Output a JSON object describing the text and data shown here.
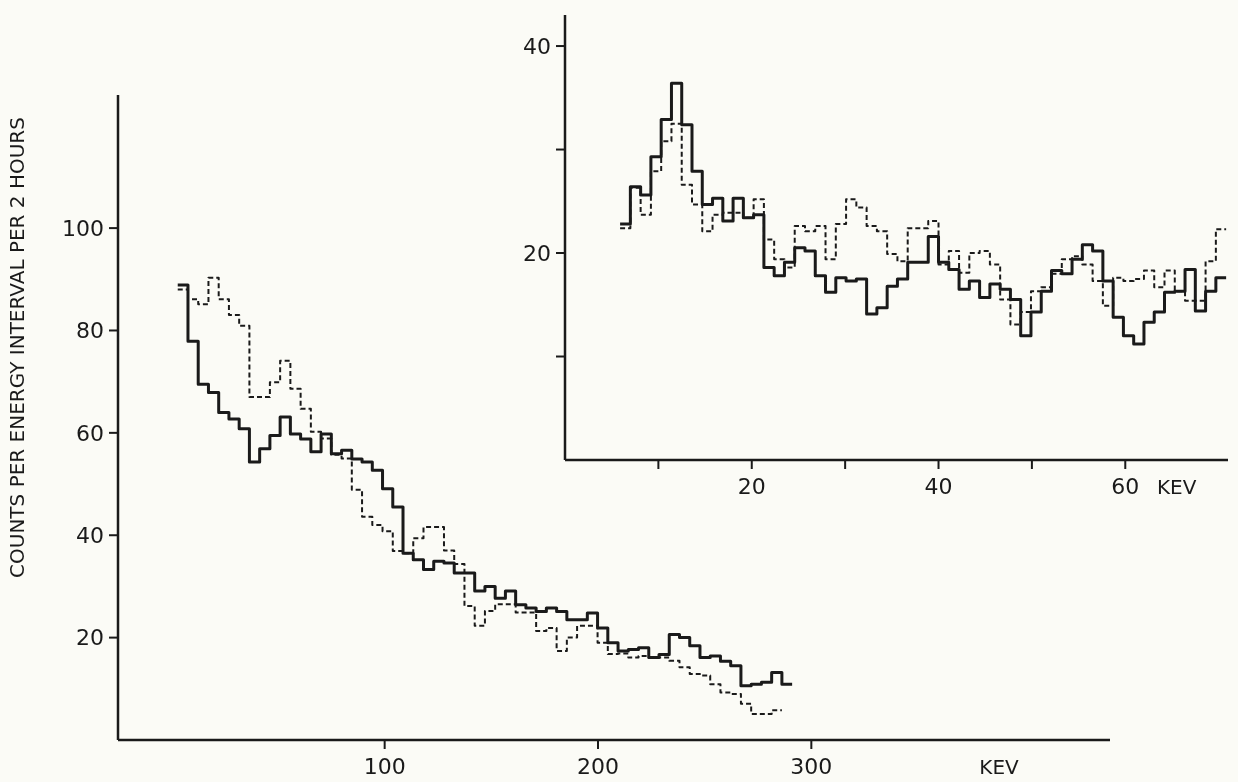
{
  "chart_data": [
    {
      "type": "step",
      "ylabel": "COUNTS PER ENERGY INTERVAL PER 2 HOURS",
      "xlabel": "KEV",
      "x": [
        3,
        7.8,
        12.6,
        17.4,
        22.2,
        27,
        31.8,
        36.6,
        41.4,
        46.2,
        51,
        55.8,
        60.6,
        65.4,
        70.2,
        75,
        79.8,
        84.6,
        89.4,
        94.2,
        99,
        103.8,
        108.6,
        113.4,
        118.2,
        123,
        127.8,
        132.6,
        137.4,
        142.2,
        147,
        151.8,
        156.6,
        161.4,
        166.2,
        171,
        175.8,
        180.6,
        185.4,
        190.2,
        195,
        199.8,
        204.6,
        209.4,
        214.2,
        219,
        223.8,
        228.6,
        233.4,
        238.2,
        243,
        247.8,
        252.6,
        257.4,
        262.2,
        267,
        271.8,
        276.6,
        281.4,
        286.2,
        291
      ],
      "series": [
        {
          "color": "#1a1a1a",
          "line_style": "solid",
          "values": [
            88.9,
            77.9,
            69.5,
            67.9,
            64.0,
            62.7,
            60.8,
            54.3,
            56.9,
            59.5,
            63.1,
            59.8,
            58.8,
            56.3,
            59.8,
            55.9,
            56.6,
            54.9,
            54.3,
            52.7,
            49.1,
            45.5,
            36.5,
            35.2,
            33.3,
            34.9,
            34.6,
            32.6,
            32.6,
            29.1,
            30.0,
            27.7,
            29.1,
            26.4,
            25.8,
            25.1,
            25.8,
            25.1,
            23.5,
            23.5,
            24.8,
            21.9,
            19.0,
            17.4,
            17.7,
            18.0,
            16.1,
            16.7,
            20.6,
            20.0,
            18.4,
            16.1,
            16.4,
            15.4,
            14.5,
            10.6,
            10.9,
            11.3,
            13.2,
            10.9,
            10.9
          ]
        },
        {
          "color": "#1a1a1a",
          "line_style": "dashed",
          "values": [
            88.0,
            86.1,
            85.1,
            90.3,
            86.1,
            83.0,
            80.9,
            67.0,
            67.0,
            69.9,
            74.1,
            68.6,
            64.7,
            60.2,
            58.9,
            55.7,
            55.0,
            48.9,
            43.6,
            42.0,
            40.8,
            36.9,
            36.5,
            39.4,
            41.6,
            41.6,
            37.0,
            34.4,
            26.2,
            22.3,
            25.2,
            26.5,
            26.5,
            24.9,
            24.9,
            21.3,
            21.9,
            17.4,
            20.0,
            22.3,
            22.3,
            19.0,
            16.8,
            16.9,
            16.1,
            16.4,
            16.1,
            16.1,
            15.5,
            14.2,
            12.9,
            12.6,
            10.9,
            9.3,
            9.0,
            7.1,
            5.1,
            5.1,
            5.8,
            5.8,
            null
          ]
        }
      ],
      "xlim": [
        -25,
        440
      ],
      "ylim": [
        0,
        126
      ],
      "xticks": [
        100,
        200,
        300
      ],
      "yticks": [
        20,
        40,
        60,
        80,
        100
      ]
    },
    {
      "type": "step",
      "xlabel": "KEV",
      "x": [
        5.9,
        7,
        8.1,
        9.2,
        10.3,
        11.4,
        12.5,
        13.6,
        14.7,
        15.8,
        16.9,
        18,
        19.1,
        20.2,
        21.3,
        22.4,
        23.5,
        24.6,
        25.7,
        26.8,
        27.9,
        29,
        30.1,
        31.2,
        32.3,
        33.4,
        34.5,
        35.6,
        36.7,
        37.8,
        38.9,
        40,
        41.1,
        42.2,
        43.3,
        44.4,
        45.5,
        46.6,
        47.7,
        48.8,
        49.9,
        51,
        52.1,
        53.2,
        54.3,
        55.4,
        56.5,
        57.6,
        58.7,
        59.8,
        60.9,
        62,
        63.1,
        64.2,
        65.3,
        66.4,
        67.5,
        68.6,
        69.7,
        70.8
      ],
      "series": [
        {
          "color": "#1a1a1a",
          "line_style": "solid",
          "values": [
            22.8,
            26.4,
            25.6,
            29.3,
            32.9,
            36.4,
            32.4,
            27.9,
            24.7,
            25.3,
            23.1,
            25.3,
            23.4,
            23.7,
            18.6,
            17.8,
            19.1,
            20.5,
            20.2,
            17.8,
            16.2,
            17.6,
            17.3,
            17.5,
            14.1,
            14.7,
            16.8,
            17.5,
            19.1,
            19.1,
            21.6,
            19.1,
            18.4,
            16.5,
            17.3,
            15.7,
            17.0,
            16.5,
            15.5,
            12.0,
            14.3,
            16.3,
            18.3,
            18.0,
            19.4,
            20.8,
            20.2,
            17.3,
            13.8,
            12.0,
            11.2,
            13.3,
            14.3,
            16.2,
            16.3,
            18.4,
            14.4,
            16.3,
            17.6,
            17.6
          ]
        },
        {
          "color": "#1a1a1a",
          "line_style": "dashed",
          "values": [
            22.4,
            26.3,
            23.7,
            27.9,
            30.8,
            32.5,
            26.6,
            24.7,
            22.1,
            23.7,
            23.9,
            23.9,
            23.4,
            25.2,
            21.3,
            19.4,
            18.6,
            22.6,
            22.1,
            22.6,
            19.4,
            22.8,
            25.2,
            24.4,
            22.6,
            22.1,
            19.9,
            19.2,
            22.4,
            22.4,
            23.1,
            18.9,
            20.2,
            18.1,
            20.0,
            20.2,
            18.9,
            15.5,
            13.1,
            14.3,
            16.3,
            16.7,
            18.0,
            19.4,
            19.7,
            18.9,
            17.3,
            14.9,
            17.6,
            17.3,
            17.5,
            18.3,
            16.7,
            18.3,
            16.3,
            15.4,
            15.4,
            19.2,
            22.3,
            22.3
          ]
        }
      ],
      "xlim": [
        0,
        71
      ],
      "ylim": [
        0,
        43
      ],
      "xticks": [
        {
          "value": 10,
          "label": null
        },
        20,
        {
          "value": 30,
          "label": null
        },
        40,
        {
          "value": 50,
          "label": null
        },
        60
      ],
      "yticks": [
        {
          "value": 10,
          "label": null
        },
        20,
        {
          "value": 30,
          "label": null
        },
        40
      ]
    }
  ]
}
